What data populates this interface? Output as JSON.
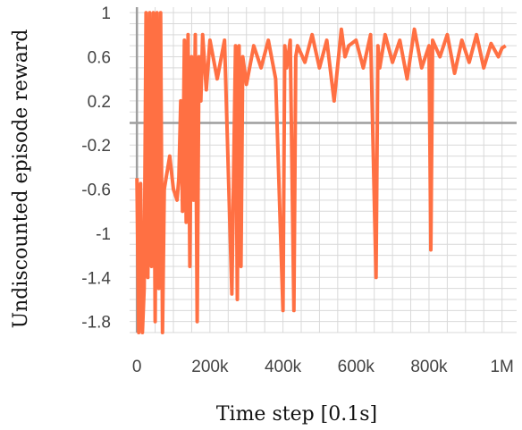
{
  "chart_data": {
    "type": "line",
    "title": "",
    "xlabel": "Time step [0.1s]",
    "ylabel": "Undiscounted episode reward",
    "xlim": [
      -20000,
      1040000
    ],
    "ylim": [
      -1.9,
      1.05
    ],
    "grid": true,
    "x_ticks": [
      {
        "value": 0,
        "label": "0"
      },
      {
        "value": 200000,
        "label": "200k"
      },
      {
        "value": 400000,
        "label": "400k"
      },
      {
        "value": 600000,
        "label": "600k"
      },
      {
        "value": 800000,
        "label": "800k"
      },
      {
        "value": 1000000,
        "label": "1M"
      }
    ],
    "y_ticks": [
      {
        "value": 1,
        "label": "1"
      },
      {
        "value": 0.6,
        "label": "0.6"
      },
      {
        "value": 0.2,
        "label": "0.2"
      },
      {
        "value": -0.2,
        "label": "-0.2"
      },
      {
        "value": -0.6,
        "label": "-0.6"
      },
      {
        "value": -1,
        "label": "-1"
      },
      {
        "value": -1.4,
        "label": "-1.4"
      },
      {
        "value": -1.8,
        "label": "-1.8"
      }
    ],
    "series": [
      {
        "color": "#ff7043",
        "x": [
          0,
          5000,
          10000,
          15000,
          20000,
          25000,
          30000,
          35000,
          40000,
          45000,
          50000,
          55000,
          60000,
          65000,
          70000,
          75000,
          80000,
          90000,
          100000,
          110000,
          115000,
          120000,
          125000,
          130000,
          135000,
          140000,
          145000,
          150000,
          155000,
          160000,
          165000,
          170000,
          175000,
          180000,
          190000,
          200000,
          220000,
          240000,
          260000,
          270000,
          275000,
          280000,
          285000,
          290000,
          300000,
          320000,
          340000,
          360000,
          380000,
          400000,
          405000,
          410000,
          420000,
          430000,
          435000,
          440000,
          460000,
          480000,
          500000,
          520000,
          540000,
          560000,
          570000,
          580000,
          600000,
          620000,
          640000,
          655000,
          660000,
          665000,
          680000,
          700000,
          720000,
          740000,
          760000,
          780000,
          800000,
          805000,
          810000,
          830000,
          850000,
          870000,
          890000,
          910000,
          930000,
          950000,
          970000,
          990000,
          1000000,
          1010000
        ],
        "y": [
          -0.5,
          -1.9,
          -0.55,
          -1.9,
          -1.5,
          1.0,
          -1.4,
          1.0,
          -1.3,
          1.0,
          -1.8,
          1.0,
          -1.5,
          1.0,
          -1.9,
          -0.6,
          -0.5,
          -0.3,
          -0.6,
          -0.7,
          -0.5,
          0.2,
          -0.8,
          0.75,
          -0.9,
          0.8,
          -1.3,
          0.6,
          -0.7,
          0.8,
          -1.8,
          0.6,
          0.2,
          0.8,
          0.3,
          0.75,
          0.4,
          0.75,
          -1.55,
          0.7,
          -1.6,
          0.7,
          -1.3,
          0.6,
          0.35,
          0.7,
          0.5,
          0.75,
          0.4,
          -1.7,
          0.7,
          0.5,
          0.75,
          -1.7,
          0.6,
          0.7,
          0.55,
          0.8,
          0.5,
          0.75,
          0.2,
          0.85,
          0.6,
          0.7,
          0.75,
          0.5,
          0.8,
          -1.4,
          0.7,
          0.5,
          0.8,
          0.55,
          0.75,
          0.4,
          0.85,
          0.5,
          0.7,
          -1.15,
          0.75,
          0.6,
          0.8,
          0.45,
          0.75,
          0.55,
          0.8,
          0.5,
          0.72,
          0.6,
          0.68,
          0.7
        ]
      }
    ]
  }
}
